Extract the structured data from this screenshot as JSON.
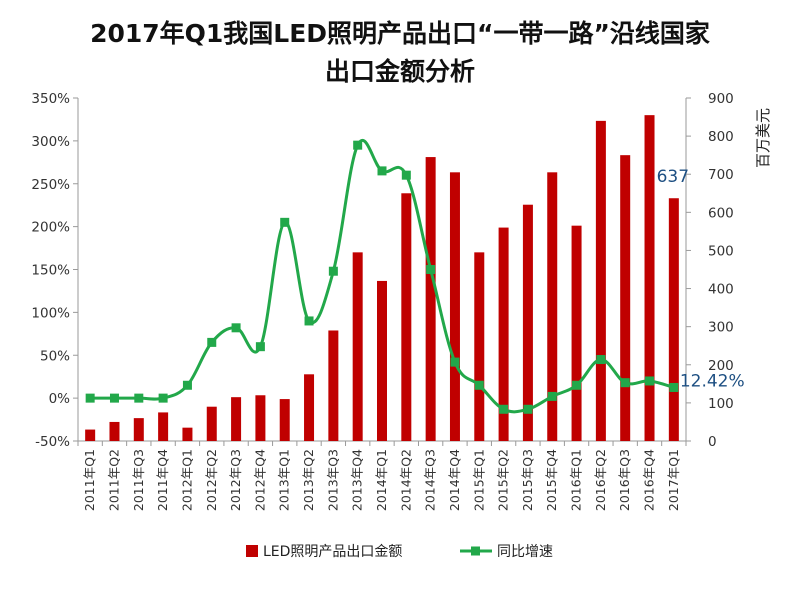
{
  "page": {
    "title_line1": "2017年Q1我国LED照明产品出口“一带一路”沿线国家",
    "title_line2": "出口金额分析"
  },
  "chart_data": {
    "type": "bar+line",
    "title": "2017年Q1我国LED照明产品出口“一带一路”沿线国家出口金额分析",
    "categories": [
      "2011年Q1",
      "2011年Q2",
      "2011年Q3",
      "2011年Q4",
      "2012年Q1",
      "2012年Q2",
      "2012年Q3",
      "2012年Q4",
      "2013年Q1",
      "2013年Q2",
      "2013年Q3",
      "2013年Q4",
      "2014年Q1",
      "2014年Q2",
      "2014年Q3",
      "2014年Q4",
      "2015年Q1",
      "2015年Q2",
      "2015年Q3",
      "2015年Q4",
      "2016年Q1",
      "2016年Q2",
      "2016年Q3",
      "2016年Q4",
      "2017年Q1"
    ],
    "series": [
      {
        "name": "LED照明产品出口金额",
        "type": "bar",
        "axis": "right",
        "color": "#c00000",
        "values": [
          30,
          50,
          60,
          75,
          35,
          90,
          115,
          120,
          110,
          175,
          290,
          495,
          420,
          650,
          745,
          705,
          495,
          560,
          620,
          705,
          565,
          840,
          750,
          855,
          637
        ]
      },
      {
        "name": "同比增速",
        "type": "line",
        "axis": "left",
        "color": "#22a84a",
        "values": [
          0,
          0,
          0,
          0,
          15,
          65,
          82,
          60,
          205,
          90,
          148,
          295,
          265,
          260,
          150,
          42,
          15,
          -13,
          -13,
          2,
          15,
          45,
          18,
          20,
          12.42
        ]
      }
    ],
    "y_left": {
      "min": -50,
      "max": 350,
      "step": 50,
      "ticks": [
        "-50%",
        "0%",
        "50%",
        "100%",
        "150%",
        "200%",
        "250%",
        "300%",
        "350%"
      ]
    },
    "y_right": {
      "min": 0,
      "max": 900,
      "step": 100,
      "label": "百万美元",
      "ticks": [
        "0",
        "100",
        "200",
        "300",
        "400",
        "500",
        "600",
        "700",
        "800",
        "900"
      ]
    },
    "annotations": [
      {
        "text": "637",
        "series": "LED照明产品出口金额",
        "category": "2017年Q1"
      },
      {
        "text": "12.42%",
        "series": "同比增速",
        "category": "2017年Q1"
      }
    ],
    "legend": {
      "position": "bottom",
      "items": [
        "LED照明产品出口金额",
        "同比增速"
      ]
    },
    "grid": false
  }
}
